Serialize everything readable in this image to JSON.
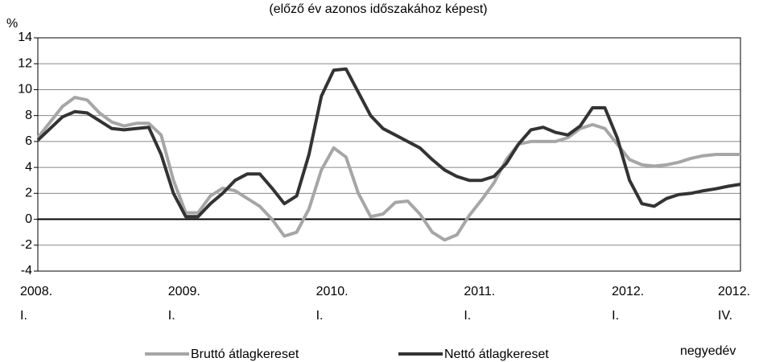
{
  "chart_data": {
    "type": "line",
    "title": "(előző év azonos időszakához képest)",
    "y_label": "%",
    "x_label": "negyedév",
    "categories": [
      "2008.\nI.",
      null,
      null,
      null,
      null,
      null,
      null,
      null,
      null,
      null,
      null,
      null,
      "2009.\nI.",
      null,
      null,
      null,
      null,
      null,
      null,
      null,
      null,
      null,
      null,
      null,
      "2010.\nI.",
      null,
      null,
      null,
      null,
      null,
      null,
      null,
      null,
      null,
      null,
      null,
      "2011.\nI.",
      null,
      null,
      null,
      null,
      null,
      null,
      null,
      null,
      null,
      null,
      null,
      "2012.\nI.",
      null,
      null,
      null,
      null,
      null,
      null,
      null,
      null,
      "2012.\nIV."
    ],
    "series": [
      {
        "name": "Bruttó átlagkereset",
        "color": "#a6a6a6",
        "values": [
          6.3,
          7.5,
          8.7,
          9.4,
          9.2,
          8.2,
          7.5,
          7.2,
          7.4,
          7.4,
          6.5,
          3.0,
          0.5,
          0.5,
          1.8,
          2.4,
          2.2,
          1.6,
          1.0,
          0.0,
          -1.3,
          -1.0,
          0.8,
          3.8,
          5.5,
          4.8,
          2.0,
          0.2,
          0.4,
          1.3,
          1.4,
          0.4,
          -1.0,
          -1.6,
          -1.2,
          0.3,
          1.5,
          2.8,
          4.6,
          5.8,
          6.0,
          6.0,
          6.0,
          6.3,
          7.0,
          7.3,
          7.0,
          5.8,
          4.6,
          4.2,
          4.1,
          4.2,
          4.4,
          4.7,
          4.9,
          5.0,
          5.0,
          5.0
        ]
      },
      {
        "name": "Nettó átlagkereset",
        "color": "#333333",
        "values": [
          6.1,
          7.0,
          7.9,
          8.3,
          8.2,
          7.6,
          7.0,
          6.9,
          7.0,
          7.1,
          5.0,
          2.0,
          0.2,
          0.2,
          1.2,
          2.0,
          3.0,
          3.5,
          3.5,
          2.4,
          1.2,
          1.8,
          5.0,
          9.5,
          11.5,
          11.6,
          9.8,
          8.0,
          7.0,
          6.5,
          6.0,
          5.5,
          4.6,
          3.8,
          3.3,
          3.0,
          3.0,
          3.3,
          4.3,
          5.8,
          6.9,
          7.1,
          6.7,
          6.5,
          7.2,
          8.6,
          8.6,
          6.3,
          3.0,
          1.2,
          1.0,
          1.6,
          1.9,
          2.0,
          2.2,
          2.35,
          2.55,
          2.7
        ]
      }
    ],
    "ylim": [
      -4,
      14
    ],
    "yticks": [
      -4,
      -2,
      0,
      2,
      4,
      6,
      8,
      10,
      12,
      14
    ],
    "grid": true,
    "legend": "bottom"
  }
}
